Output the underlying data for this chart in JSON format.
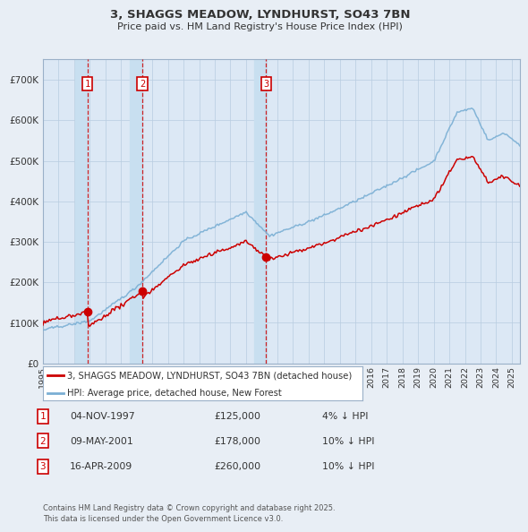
{
  "title": "3, SHAGGS MEADOW, LYNDHURST, SO43 7BN",
  "subtitle": "Price paid vs. HM Land Registry's House Price Index (HPI)",
  "ylabel_ticks": [
    "£0",
    "£100K",
    "£200K",
    "£300K",
    "£400K",
    "£500K",
    "£600K",
    "£700K"
  ],
  "yticks": [
    0,
    100000,
    200000,
    300000,
    400000,
    500000,
    600000,
    700000
  ],
  "ylim": [
    0,
    750000
  ],
  "xlim_start": 1995.0,
  "xlim_end": 2025.5,
  "sales": [
    {
      "num": 1,
      "date_label": "04-NOV-1997",
      "price": 125000,
      "pct": "4%",
      "direction": "↓",
      "x_year": 1997.85
    },
    {
      "num": 2,
      "date_label": "09-MAY-2001",
      "price": 178000,
      "pct": "10%",
      "direction": "↓",
      "x_year": 2001.36
    },
    {
      "num": 3,
      "date_label": "16-APR-2009",
      "price": 260000,
      "pct": "10%",
      "direction": "↓",
      "x_year": 2009.29
    }
  ],
  "legend_entries": [
    {
      "label": "3, SHAGGS MEADOW, LYNDHURST, SO43 7BN (detached house)",
      "color": "#cc0000",
      "lw": 1.2
    },
    {
      "label": "HPI: Average price, detached house, New Forest",
      "color": "#7aafd4",
      "lw": 1.2
    }
  ],
  "footnote": "Contains HM Land Registry data © Crown copyright and database right 2025.\nThis data is licensed under the Open Government Licence v3.0.",
  "bg_color": "#e8eef5",
  "plot_bg": "#dce8f5",
  "grid_color": "#b8cce0",
  "sale_box_color": "#cc0000",
  "dashed_color": "#cc0000",
  "highlight_color": "#c8dff0",
  "title_color": "#333333",
  "text_color": "#333333"
}
